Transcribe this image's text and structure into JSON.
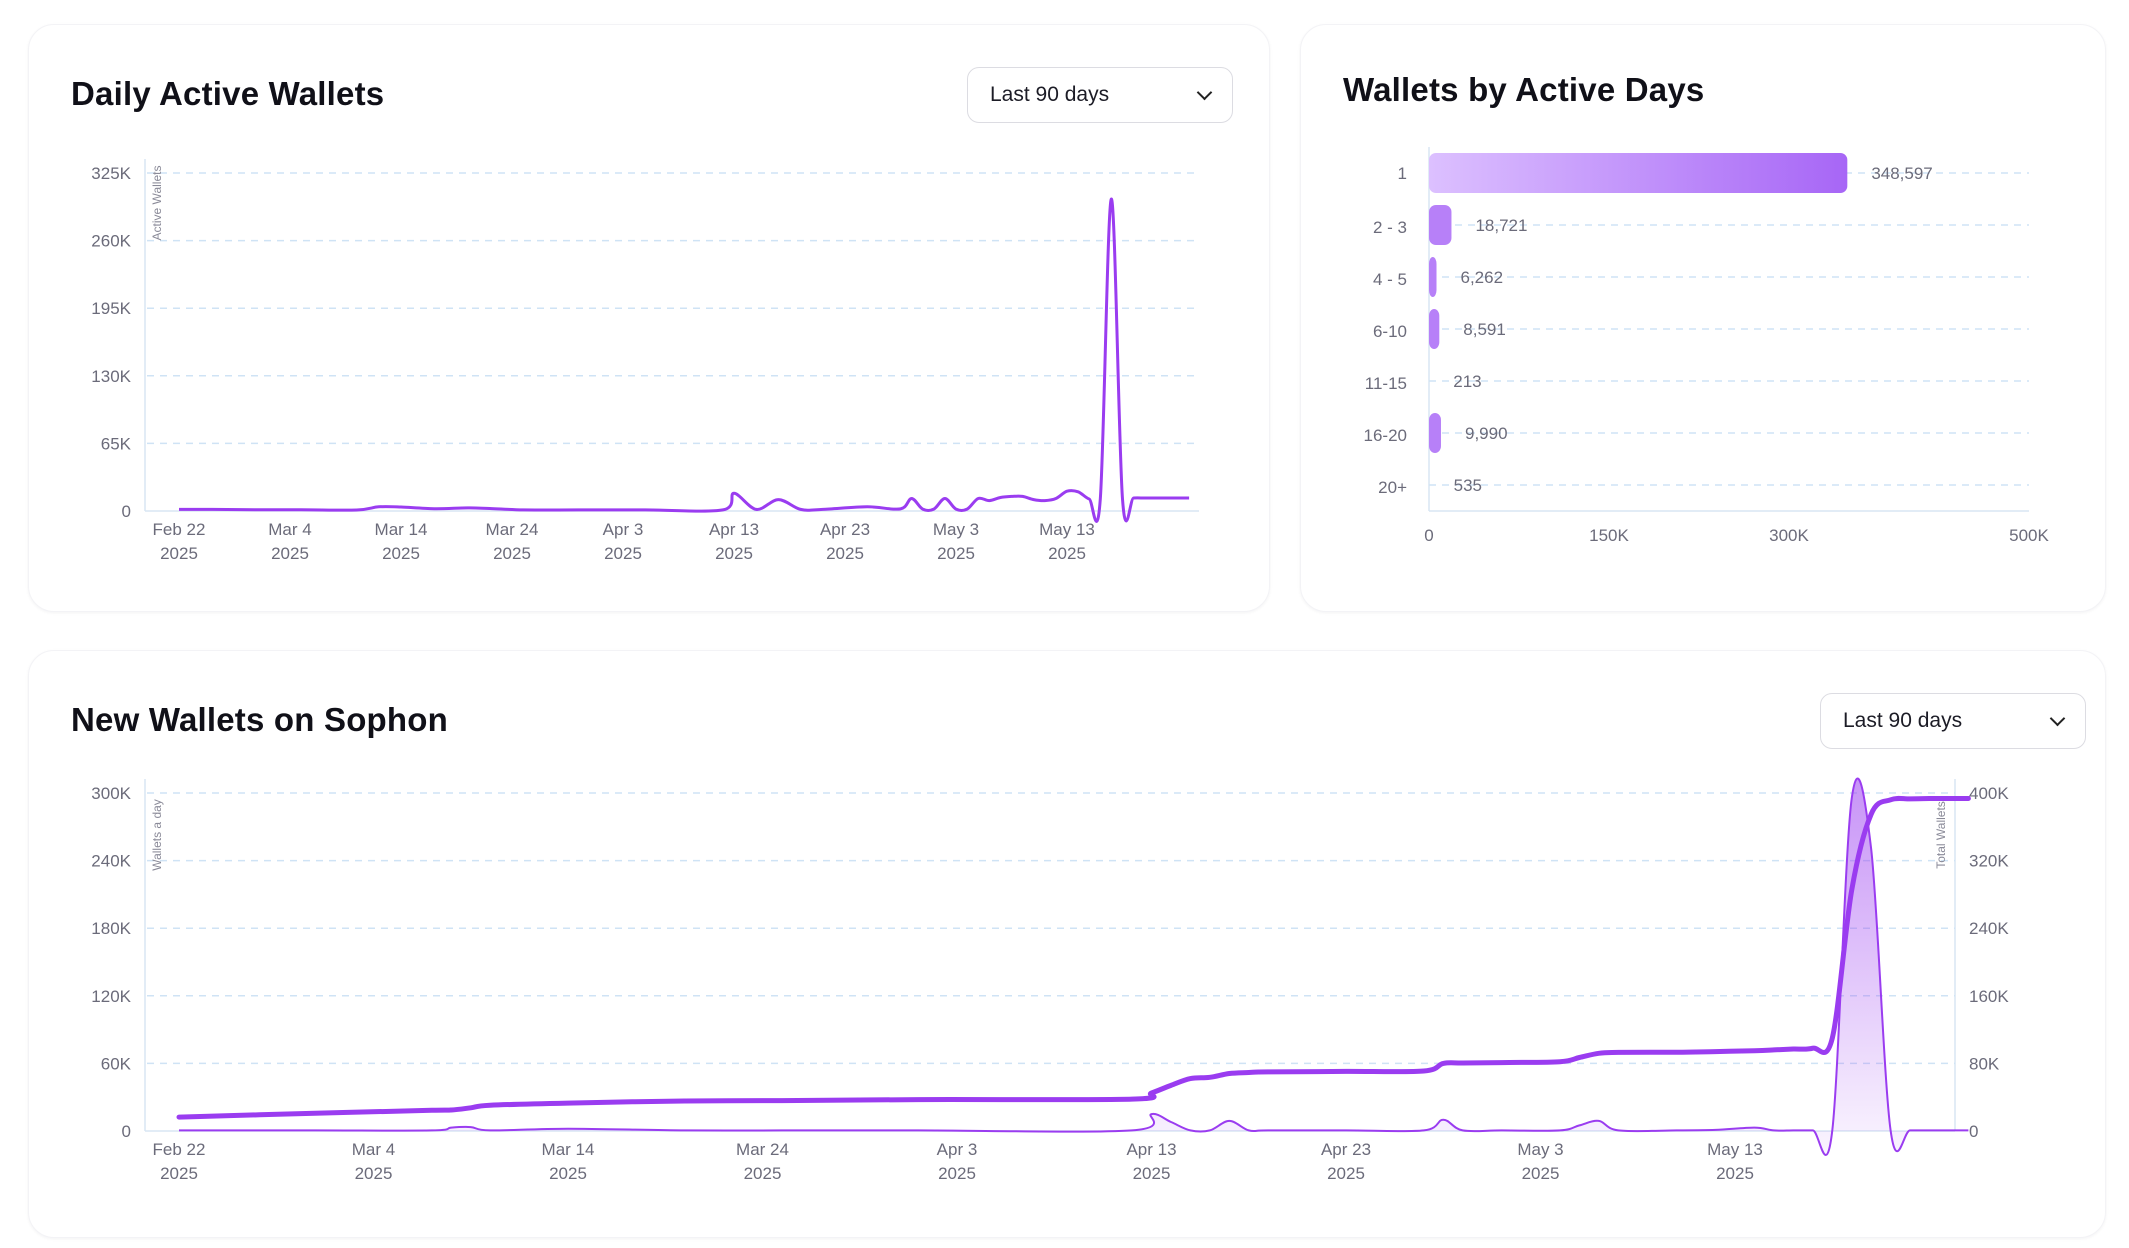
{
  "colors": {
    "accent": "#9a3cf0",
    "accent_light": "#d9b8ff",
    "grid": "#cfe3f5",
    "axis_text": "#6b6b7a"
  },
  "daily_active": {
    "title": "Daily Active Wallets",
    "range_label": "Last 90 days",
    "chart_data": {
      "type": "line",
      "title": "Daily Active Wallets",
      "ylabel": "Active Wallets",
      "ylim": [
        0,
        325000
      ],
      "yticks": [
        "0",
        "65K",
        "130K",
        "195K",
        "260K",
        "325K"
      ],
      "xticks": [
        [
          "Feb 22",
          "2025"
        ],
        [
          "Mar 4",
          "2025"
        ],
        [
          "Mar 14",
          "2025"
        ],
        [
          "Mar 24",
          "2025"
        ],
        [
          "Apr 3",
          "2025"
        ],
        [
          "Apr 13",
          "2025"
        ],
        [
          "Apr 23",
          "2025"
        ],
        [
          "May 3",
          "2025"
        ],
        [
          "May 13",
          "2025"
        ]
      ],
      "grid": true,
      "x": [
        "2025-02-22",
        "2025-02-25",
        "2025-03-01",
        "2025-03-05",
        "2025-03-10",
        "2025-03-12",
        "2025-03-14",
        "2025-03-17",
        "2025-03-20",
        "2025-03-22",
        "2025-03-25",
        "2025-03-30",
        "2025-04-05",
        "2025-04-12",
        "2025-04-13",
        "2025-04-15",
        "2025-04-17",
        "2025-04-19",
        "2025-04-21",
        "2025-04-25",
        "2025-04-28",
        "2025-04-29",
        "2025-04-30",
        "2025-05-01",
        "2025-05-02",
        "2025-05-03",
        "2025-05-04",
        "2025-05-05",
        "2025-05-06",
        "2025-05-07",
        "2025-05-08",
        "2025-05-09",
        "2025-05-10",
        "2025-05-11",
        "2025-05-12",
        "2025-05-13",
        "2025-05-14",
        "2025-05-15",
        "2025-05-16",
        "2025-05-17",
        "2025-05-18",
        "2025-05-19",
        "2025-05-20",
        "2025-05-21",
        "2025-05-22",
        "2025-05-23",
        "2025-05-24"
      ],
      "values": [
        1500,
        1500,
        1200,
        1200,
        1000,
        4000,
        3800,
        2200,
        3000,
        2400,
        1100,
        1100,
        1100,
        1100,
        17000,
        1500,
        11000,
        1500,
        1500,
        4000,
        2000,
        12000,
        1800,
        1800,
        12000,
        1800,
        1800,
        12000,
        10000,
        13000,
        14000,
        14000,
        11000,
        10000,
        12000,
        19000,
        18500,
        11500,
        11500,
        300000,
        11500,
        12500,
        12500,
        12500,
        12500,
        12500,
        12500
      ]
    }
  },
  "active_days": {
    "title": "Wallets by Active Days",
    "chart_data": {
      "type": "bar",
      "orientation": "horizontal",
      "categories": [
        "1",
        "2 - 3",
        "4 - 5",
        "6-10",
        "11-15",
        "16-20",
        "20+"
      ],
      "values": [
        348597,
        18721,
        6262,
        8591,
        213,
        9990,
        535
      ],
      "value_labels": [
        "348,597",
        "18,721",
        "6,262",
        "8,591",
        "213",
        "9,990",
        "535"
      ],
      "xlim": [
        0,
        500000
      ],
      "xticks": [
        "0",
        "150K",
        "300K",
        "500K"
      ],
      "grid": true
    }
  },
  "new_wallets": {
    "title": "New Wallets on Sophon",
    "range_label": "Last 90 days",
    "chart_data": {
      "type": "line",
      "title": "New Wallets on Sophon",
      "ylabel": "Wallets a day",
      "y2label": "Total Wallets",
      "ylim": [
        0,
        300000
      ],
      "y2lim": [
        0,
        400000
      ],
      "yticks": [
        "0",
        "60K",
        "120K",
        "180K",
        "240K",
        "300K"
      ],
      "y2ticks": [
        "0",
        "80K",
        "160K",
        "240K",
        "320K",
        "400K"
      ],
      "xticks": [
        [
          "Feb 22",
          "2025"
        ],
        [
          "Mar 4",
          "2025"
        ],
        [
          "Mar 14",
          "2025"
        ],
        [
          "Mar 24",
          "2025"
        ],
        [
          "Apr 3",
          "2025"
        ],
        [
          "Apr 13",
          "2025"
        ],
        [
          "Apr 23",
          "2025"
        ],
        [
          "May 3",
          "2025"
        ],
        [
          "May 13",
          "2025"
        ]
      ],
      "grid": true,
      "series": [
        {
          "name": "Wallets a day",
          "x": [
            "2025-02-22",
            "2025-03-01",
            "2025-03-07",
            "2025-03-08",
            "2025-03-09",
            "2025-03-10",
            "2025-03-14",
            "2025-03-20",
            "2025-03-25",
            "2025-04-01",
            "2025-04-12",
            "2025-04-13",
            "2025-04-14",
            "2025-04-15",
            "2025-04-16",
            "2025-04-17",
            "2025-04-18",
            "2025-04-19",
            "2025-04-23",
            "2025-04-27",
            "2025-04-28",
            "2025-04-29",
            "2025-05-01",
            "2025-05-04",
            "2025-05-05",
            "2025-05-06",
            "2025-05-07",
            "2025-05-10",
            "2025-05-12",
            "2025-05-14",
            "2025-05-15",
            "2025-05-16",
            "2025-05-17",
            "2025-05-18",
            "2025-05-19",
            "2025-05-20",
            "2025-05-21",
            "2025-05-22",
            "2025-05-23",
            "2025-05-24",
            "2025-05-25"
          ],
          "values": [
            500,
            500,
            500,
            3000,
            3500,
            500,
            2000,
            500,
            500,
            500,
            500,
            15000,
            8000,
            500,
            500,
            9000,
            500,
            500,
            500,
            500,
            10000,
            500,
            500,
            500,
            5000,
            9000,
            500,
            500,
            1000,
            3000,
            500,
            500,
            500,
            500,
            295000,
            250000,
            500,
            500,
            500,
            500,
            500
          ]
        },
        {
          "name": "Total Wallets",
          "x": [
            "2025-02-22",
            "2025-03-01",
            "2025-03-07",
            "2025-03-08",
            "2025-03-09",
            "2025-03-10",
            "2025-03-14",
            "2025-03-20",
            "2025-03-25",
            "2025-04-01",
            "2025-04-12",
            "2025-04-13",
            "2025-04-14",
            "2025-04-15",
            "2025-04-16",
            "2025-04-17",
            "2025-04-18",
            "2025-04-19",
            "2025-04-23",
            "2025-04-27",
            "2025-04-28",
            "2025-04-29",
            "2025-05-01",
            "2025-05-04",
            "2025-05-05",
            "2025-05-06",
            "2025-05-07",
            "2025-05-10",
            "2025-05-12",
            "2025-05-14",
            "2025-05-15",
            "2025-05-16",
            "2025-05-17",
            "2025-05-18",
            "2025-05-19",
            "2025-05-20",
            "2025-05-21",
            "2025-05-22",
            "2025-05-23",
            "2025-05-24",
            "2025-05-25"
          ],
          "values": [
            16500,
            21000,
            24500,
            24800,
            27500,
            30500,
            33000,
            35500,
            36000,
            37200,
            37800,
            45000,
            54000,
            62000,
            63500,
            68000,
            69200,
            70000,
            70500,
            71000,
            80000,
            80500,
            81000,
            82000,
            87000,
            92000,
            93000,
            93200,
            94000,
            95000,
            96000,
            97000,
            98000,
            110000,
            285000,
            375000,
            392000,
            393000,
            393500,
            393500,
            393500
          ]
        }
      ]
    }
  }
}
